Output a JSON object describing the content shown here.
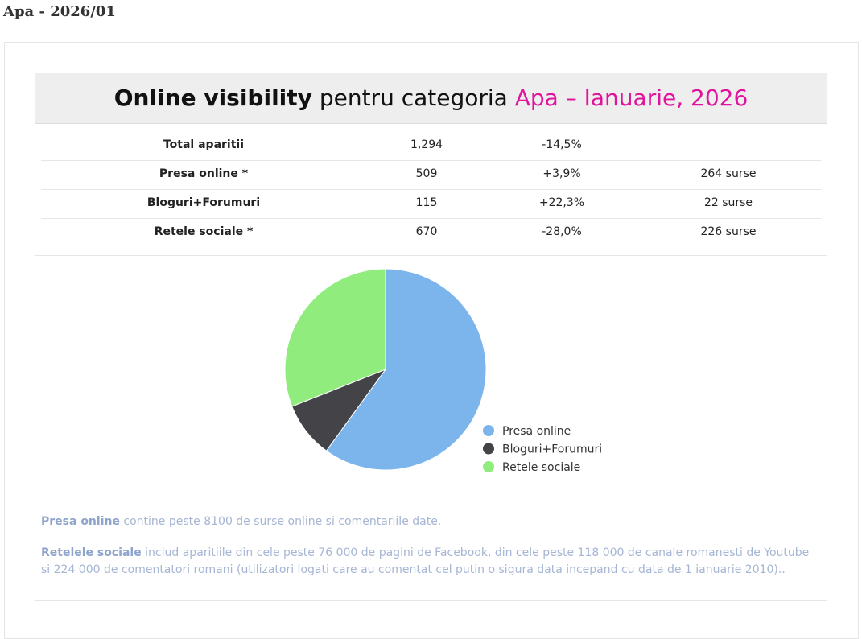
{
  "page_title": "Apa - 2026/01",
  "card": {
    "title": {
      "bold": "Online visibility",
      "normal": "pentru categoria",
      "highlight": "Apa – Ianuarie, 2026"
    }
  },
  "table": {
    "rows": [
      [
        "Total aparitii",
        "1,294",
        "-14,5%",
        ""
      ],
      [
        "Presa online *",
        "509",
        "+3,9%",
        "264 surse"
      ],
      [
        "Bloguri+Forumuri",
        "115",
        "+22,3%",
        "22 surse"
      ],
      [
        "Retele sociale *",
        "670",
        "-28,0%",
        "226 surse"
      ]
    ]
  },
  "chart_data": {
    "type": "pie",
    "categories": [
      "Presa online",
      "Bloguri+Forumuri",
      "Retele sociale"
    ],
    "values": [
      60,
      9,
      31
    ],
    "colors": [
      "#7cb5ec",
      "#434348",
      "#90ed7d"
    ],
    "legend": "right-bottom"
  },
  "notes": [
    {
      "bold": "Presa online",
      "text": "contine peste 8100 de surse online si comentariile date."
    },
    {
      "bold": "Retelele sociale",
      "text": "includ aparitiile din cele peste 76 000 de pagini de Facebook, din cele peste 118 000 de canale romanesti de Youtube si 224 000 de comentatori romani (utilizatori logati care au comentat cel putin o sigura data incepand cu data de 1 ianuarie 2010).."
    }
  ]
}
